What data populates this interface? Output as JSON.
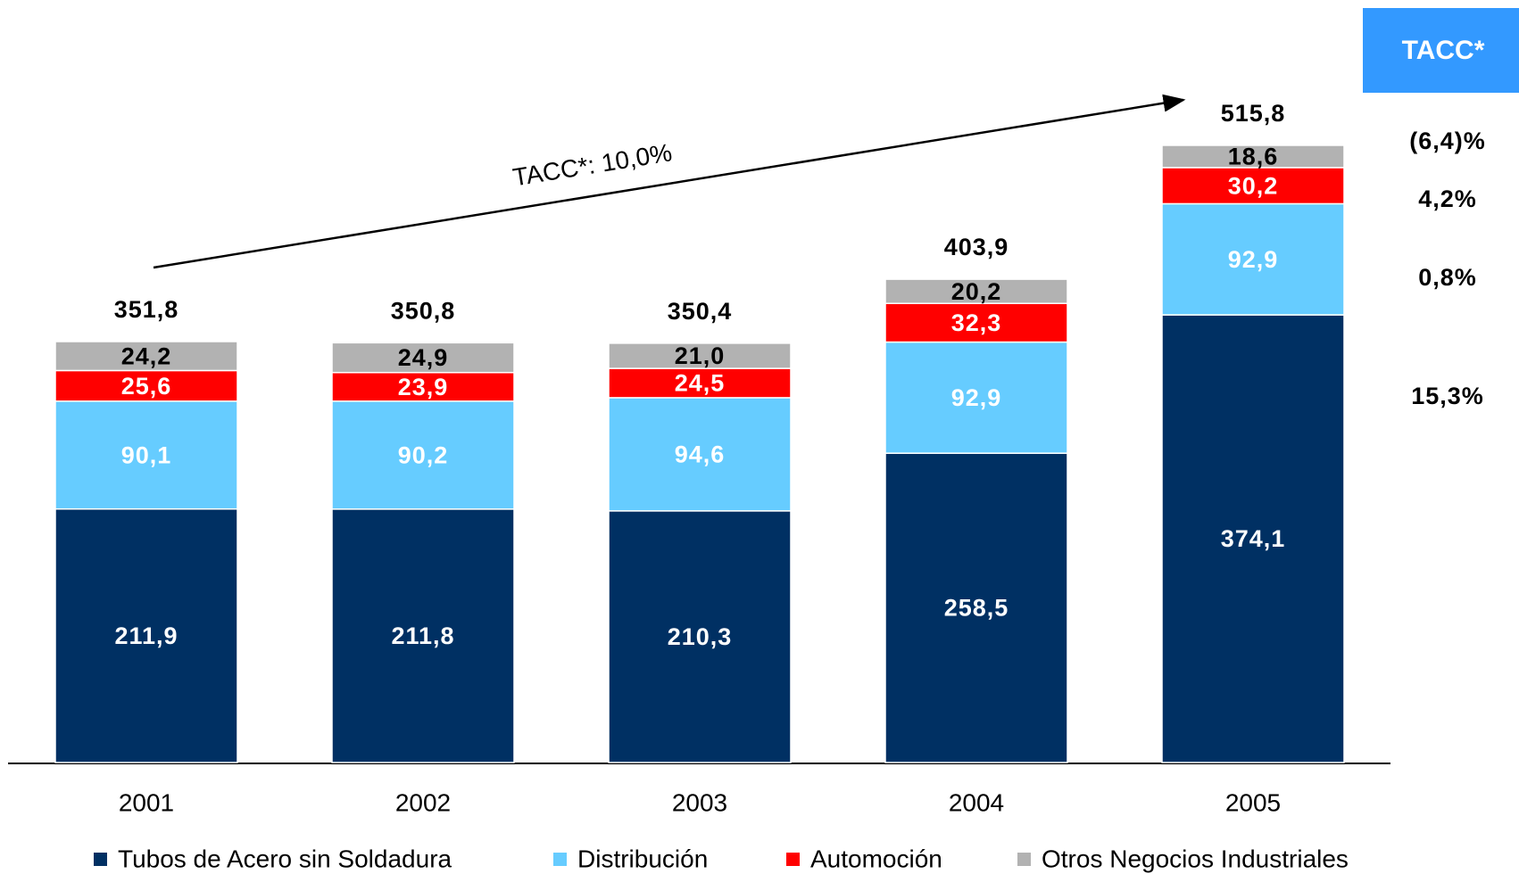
{
  "chart_data": {
    "type": "stacked_bar",
    "categories": [
      "2001",
      "2002",
      "2003",
      "2004",
      "2005"
    ],
    "series": [
      {
        "name": "Tubos de Acero sin Soldadura",
        "color": "#003063",
        "label_color": "#ffffff",
        "values": [
          211.9,
          211.8,
          210.3,
          258.5,
          374.1
        ],
        "value_labels": [
          "211,9",
          "211,8",
          "210,3",
          "258,5",
          "374,1"
        ]
      },
      {
        "name": "Distribución",
        "color": "#66ccff",
        "label_color": "#ffffff",
        "values": [
          90.1,
          90.2,
          94.6,
          92.9,
          92.9
        ],
        "value_labels": [
          "90,1",
          "90,2",
          "94,6",
          "92,9",
          "92,9"
        ]
      },
      {
        "name": "Automoción",
        "color": "#ff0000",
        "label_color": "#ffffff",
        "values": [
          25.6,
          23.9,
          24.5,
          32.3,
          30.2
        ],
        "value_labels": [
          "25,6",
          "23,9",
          "24,5",
          "32,3",
          "30,2"
        ]
      },
      {
        "name": "Otros Negocios Industriales",
        "color": "#b2b2b2",
        "label_color": "#000000",
        "values": [
          24.2,
          24.9,
          21.0,
          20.2,
          18.6
        ],
        "value_labels": [
          "24,2",
          "24,9",
          "21,0",
          "20,2",
          "18,6"
        ]
      }
    ],
    "totals": [
      351.8,
      350.8,
      350.4,
      403.9,
      515.8
    ],
    "total_labels": [
      "351,8",
      "350,8",
      "350,4",
      "403,9",
      "515,8"
    ],
    "ylim": [
      0,
      600
    ],
    "annotation": "TACC*: 10,0%",
    "cagr": {
      "title": "TACC*",
      "color": "#3399ff",
      "values": [
        15.3,
        0.8,
        4.2,
        -6.4
      ],
      "value_labels": [
        "15,3%",
        "0,8%",
        "4,2%",
        "(6,4)%"
      ]
    }
  }
}
